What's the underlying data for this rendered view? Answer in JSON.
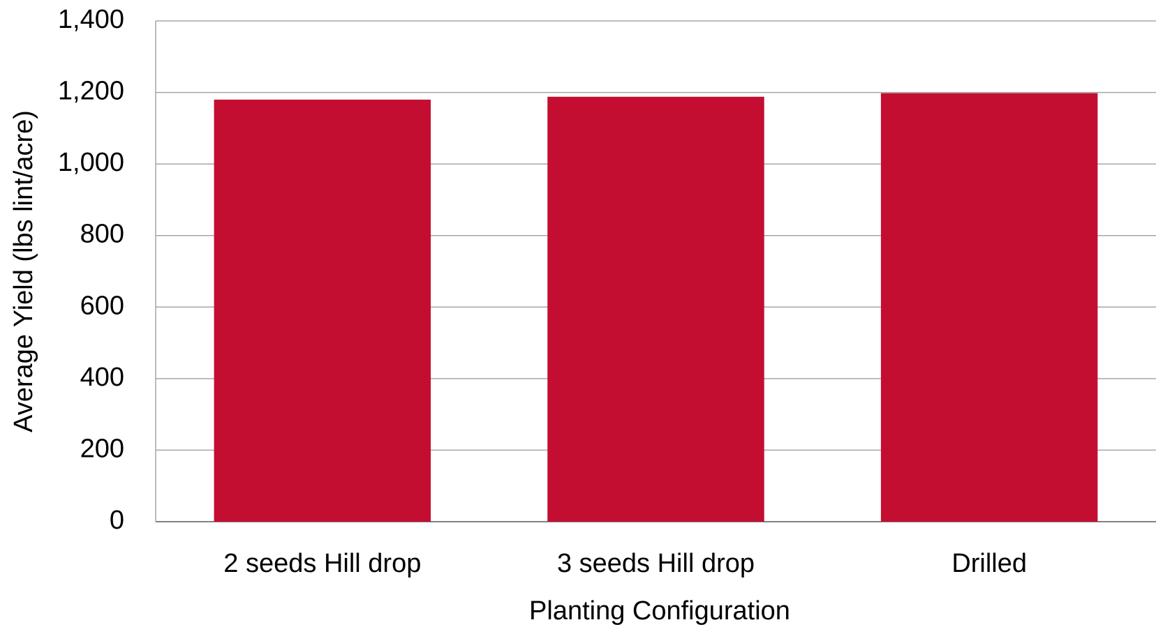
{
  "chart_data": {
    "type": "bar",
    "categories": [
      "2 seeds Hill drop",
      "3 seeds Hill drop",
      "Drilled"
    ],
    "values": [
      1180,
      1188,
      1198
    ],
    "color": "#c40e31",
    "xlabel": "Planting Configuration",
    "ylabel": "Average Yield (lbs lint/acre)",
    "ylim": [
      0,
      1400
    ],
    "yticks": [
      0,
      200,
      400,
      600,
      800,
      {
        "value": 1000,
        "label": "1,000"
      },
      {
        "value": 1200,
        "label": "1,200"
      },
      {
        "value": 1400,
        "label": "1,400"
      }
    ],
    "grid": true
  }
}
